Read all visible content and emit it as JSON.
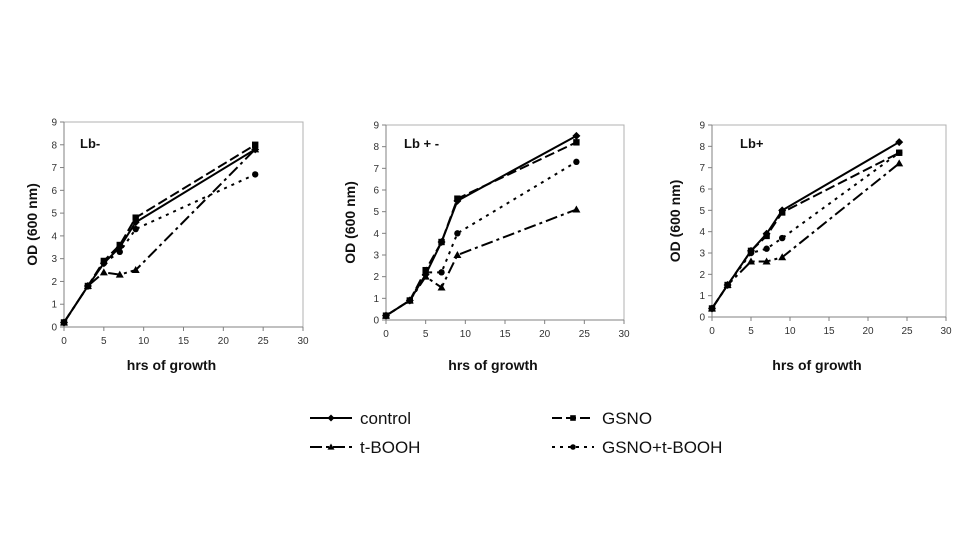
{
  "chart_data": [
    {
      "type": "line",
      "title": "Lb-",
      "xlabel": "hrs of growth",
      "ylabel": "OD (600 nm)",
      "xlim": [
        0,
        30
      ],
      "ylim": [
        0,
        9
      ],
      "xticks": [
        0,
        5,
        10,
        15,
        20,
        25,
        30
      ],
      "yticks": [
        0,
        1,
        2,
        3,
        4,
        5,
        6,
        7,
        8,
        9
      ],
      "grid": false,
      "series": [
        {
          "name": "control",
          "x": [
            0,
            3,
            5,
            7,
            9,
            24
          ],
          "y": [
            0.2,
            1.8,
            2.8,
            3.5,
            4.6,
            7.8
          ]
        },
        {
          "name": "GSNO",
          "x": [
            0,
            3,
            5,
            7,
            9,
            24
          ],
          "y": [
            0.2,
            1.8,
            2.9,
            3.6,
            4.8,
            8.0
          ]
        },
        {
          "name": "t-BOOH",
          "x": [
            0,
            3,
            5,
            7,
            9,
            24
          ],
          "y": [
            0.2,
            1.8,
            2.4,
            2.3,
            2.5,
            7.8
          ]
        },
        {
          "name": "GSNO+t-BOOH",
          "x": [
            0,
            3,
            5,
            7,
            9,
            24
          ],
          "y": [
            0.2,
            1.8,
            2.8,
            3.3,
            4.3,
            6.7
          ]
        }
      ]
    },
    {
      "type": "line",
      "title": "Lb + -",
      "xlabel": "hrs of growth",
      "ylabel": "OD (600 nm)",
      "xlim": [
        0,
        30
      ],
      "ylim": [
        0,
        9
      ],
      "xticks": [
        0,
        5,
        10,
        15,
        20,
        25,
        30
      ],
      "yticks": [
        0,
        1,
        2,
        3,
        4,
        5,
        6,
        7,
        8,
        9
      ],
      "grid": false,
      "series": [
        {
          "name": "control",
          "x": [
            0,
            3,
            5,
            7,
            9,
            24
          ],
          "y": [
            0.2,
            0.9,
            2.1,
            3.6,
            5.5,
            8.5
          ]
        },
        {
          "name": "GSNO",
          "x": [
            0,
            3,
            5,
            7,
            9,
            24
          ],
          "y": [
            0.2,
            0.9,
            2.3,
            3.6,
            5.6,
            8.2
          ]
        },
        {
          "name": "t-BOOH",
          "x": [
            0,
            3,
            5,
            7,
            9,
            24
          ],
          "y": [
            0.2,
            0.9,
            2.0,
            1.5,
            3.0,
            5.1
          ]
        },
        {
          "name": "GSNO+t-BOOH",
          "x": [
            0,
            3,
            5,
            7,
            9,
            24
          ],
          "y": [
            0.2,
            0.9,
            2.2,
            2.2,
            4.0,
            7.3
          ]
        }
      ]
    },
    {
      "type": "line",
      "title": "Lb+",
      "xlabel": "hrs of growth",
      "ylabel": "OD (600 nm)",
      "xlim": [
        0,
        30
      ],
      "ylim": [
        0,
        9
      ],
      "xticks": [
        0,
        5,
        10,
        15,
        20,
        25,
        30
      ],
      "yticks": [
        0,
        1,
        2,
        3,
        4,
        5,
        6,
        7,
        8,
        9
      ],
      "grid": false,
      "series": [
        {
          "name": "control",
          "x": [
            0,
            2,
            5,
            7,
            9,
            24
          ],
          "y": [
            0.4,
            1.5,
            3.1,
            3.9,
            5.0,
            8.2
          ]
        },
        {
          "name": "GSNO",
          "x": [
            0,
            2,
            5,
            7,
            9,
            24
          ],
          "y": [
            0.4,
            1.5,
            3.1,
            3.8,
            4.9,
            7.7
          ]
        },
        {
          "name": "t-BOOH",
          "x": [
            0,
            2,
            5,
            7,
            9,
            24
          ],
          "y": [
            0.4,
            1.5,
            2.6,
            2.6,
            2.8,
            7.2
          ]
        },
        {
          "name": "GSNO+t-BOOH",
          "x": [
            0,
            2,
            5,
            7,
            9,
            24
          ],
          "y": [
            0.4,
            1.5,
            3.0,
            3.2,
            3.7,
            7.7
          ]
        }
      ]
    }
  ],
  "legend": {
    "placement": "bottom-center",
    "entries": [
      {
        "name": "control",
        "marker": "diamond",
        "line": "solid"
      },
      {
        "name": "GSNO",
        "marker": "square",
        "line": "dash"
      },
      {
        "name": "t-BOOH",
        "marker": "triangle",
        "line": "dash-dot"
      },
      {
        "name": "GSNO+t-BOOH",
        "marker": "circle",
        "line": "dot"
      }
    ]
  },
  "colors": {
    "line": "#000000",
    "axis": "#808080",
    "background": "#ffffff"
  }
}
